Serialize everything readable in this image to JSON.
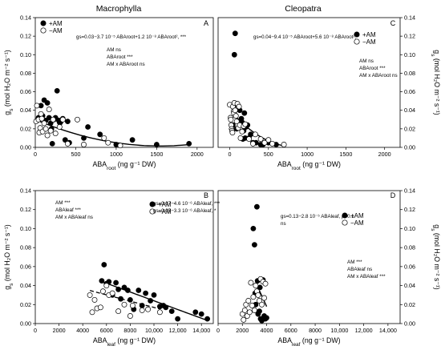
{
  "column_titles": [
    "Macrophylla",
    "Cleopatra"
  ],
  "chart_data": [
    {
      "type": "scatter",
      "panel": "A",
      "xlabel": "ABAroot (ng g⁻¹ DW)",
      "ylabel": "gs (mol H2O m⁻² s⁻¹)",
      "xlim": [
        0,
        2200
      ],
      "ylim": [
        0,
        0.14
      ],
      "xticks": [
        0,
        500,
        1000,
        1500,
        2000
      ],
      "yticks": [
        0.0,
        0.02,
        0.04,
        0.06,
        0.08,
        0.1,
        0.12,
        0.14
      ],
      "legend": [
        "+AM",
        "−AM"
      ],
      "equation": "gs=0.03−3.7 10⁻⁵ ABAroot+1.2 10⁻⁸ ABAroot², ***",
      "stats": [
        "AM  ns",
        "ABAroot ***",
        "AM x ABAroot ns"
      ],
      "series": [
        {
          "name": "+AM",
          "x": [
            40,
            70,
            90,
            110,
            130,
            150,
            170,
            190,
            200,
            210,
            230,
            250,
            270,
            290,
            300,
            310,
            340,
            370,
            400,
            420,
            600,
            650,
            800,
            1000,
            1200,
            1500,
            1900
          ],
          "y": [
            0.032,
            0.045,
            0.034,
            0.051,
            0.029,
            0.048,
            0.032,
            0.026,
            0.02,
            0.004,
            0.03,
            0.032,
            0.061,
            0.029,
            0.027,
            0.027,
            0.031,
            0.008,
            0.028,
            0.005,
            0.01,
            0.022,
            0.014,
            0.003,
            0.008,
            0.003,
            0.004
          ]
        },
        {
          "name": "−AM",
          "x": [
            10,
            20,
            40,
            50,
            60,
            70,
            80,
            90,
            110,
            130,
            150,
            170,
            190,
            220,
            250,
            300,
            340,
            400,
            520,
            600,
            850,
            900,
            1050
          ],
          "y": [
            0.028,
            0.045,
            0.03,
            0.016,
            0.021,
            0.036,
            0.031,
            0.017,
            0.026,
            0.02,
            0.013,
            0.041,
            0.018,
            0.03,
            0.015,
            0.022,
            0.03,
            0.004,
            0.03,
            0.003,
            0.01,
            0.005,
            0.002
          ]
        }
      ],
      "fit": [
        {
          "type": "quadratic",
          "coef": [
            0.03,
            -3.7e-05,
            1.2e-08
          ],
          "x_range": [
            50,
            1900
          ],
          "style": "solid"
        }
      ]
    },
    {
      "type": "scatter",
      "panel": "C",
      "xlabel": "ABAroot (ng g⁻¹ DW)",
      "ylabel": "gs (mol H2O m⁻² s⁻¹)",
      "xlim": [
        -150,
        2200
      ],
      "ylim": [
        0,
        0.14
      ],
      "xticks": [
        0,
        500,
        1000,
        1500,
        2000
      ],
      "yticks": [
        0.0,
        0.02,
        0.04,
        0.06,
        0.08,
        0.1,
        0.12,
        0.14
      ],
      "legend": [
        "+AM",
        "−AM"
      ],
      "equation": "gs=0.04−9.4 10⁻⁵ ABAroot+5.6 10⁻⁸ ABAroot², *",
      "stats": [
        "AM  ns",
        "ABAroot ***",
        "AM x ABAroot ns"
      ],
      "series": [
        {
          "name": "+AM",
          "x": [
            40,
            60,
            70,
            80,
            90,
            100,
            110,
            130,
            150,
            160,
            170,
            180,
            190,
            200,
            210,
            230,
            250,
            270,
            300,
            340,
            400,
            430,
            500,
            600
          ],
          "y": [
            0.024,
            0.1,
            0.123,
            0.034,
            0.02,
            0.046,
            0.041,
            0.04,
            0.031,
            0.027,
            0.009,
            0.018,
            0.037,
            0.01,
            0.022,
            0.024,
            0.01,
            0.014,
            0.005,
            0.005,
            0.003,
            0.003,
            0.005,
            0.003
          ]
        },
        {
          "name": "−AM",
          "x": [
            0,
            10,
            15,
            20,
            25,
            30,
            35,
            40,
            50,
            55,
            60,
            70,
            80,
            90,
            100,
            110,
            120,
            130,
            140,
            160,
            180,
            200,
            250,
            300,
            330,
            400,
            450,
            500,
            550,
            700
          ],
          "y": [
            0.046,
            0.032,
            0.03,
            0.024,
            0.02,
            0.018,
            0.016,
            0.044,
            0.039,
            0.037,
            0.048,
            0.04,
            0.034,
            0.028,
            0.047,
            0.021,
            0.044,
            0.024,
            0.01,
            0.017,
            0.023,
            0.025,
            0.009,
            0.004,
            0.014,
            0.009,
            0.005,
            0.008,
            0.004,
            0.003
          ]
        }
      ],
      "fit": [
        {
          "type": "quadratic",
          "coef": [
            0.04,
            -9.4e-05,
            5.6e-08
          ],
          "x_range": [
            30,
            700
          ],
          "style": "solid"
        }
      ]
    },
    {
      "type": "scatter",
      "panel": "B",
      "xlabel": "ABAleaf (ng g⁻¹ DW)",
      "ylabel": "gs (mol H2O m⁻² s⁻¹)",
      "xlim": [
        0,
        15000
      ],
      "ylim": [
        0,
        0.14
      ],
      "xticks": [
        0,
        2000,
        4000,
        6000,
        8000,
        10000,
        12000,
        14000
      ],
      "yticks": [
        0.0,
        0.02,
        0.04,
        0.06,
        0.08,
        0.1,
        0.12,
        0.14
      ],
      "legend": [
        "+AM",
        "−AM"
      ],
      "equations": [
        "gs=0.07−4.6 10⁻⁶ ABAleaf, ***",
        "gs=0.05−3.3 10⁻⁶ ABAleaf, *"
      ],
      "stats": [
        "AM ***",
        "ABAleaf ***",
        "AM x ABAleaf ns"
      ],
      "series": [
        {
          "name": "+AM",
          "x": [
            5600,
            5800,
            6000,
            6200,
            6500,
            6800,
            7000,
            7200,
            7500,
            7800,
            8000,
            8300,
            8700,
            9000,
            9300,
            9700,
            10000,
            10500,
            10800,
            11000,
            11500,
            12000,
            13500,
            14000,
            14500
          ],
          "y": [
            0.045,
            0.062,
            0.042,
            0.044,
            0.03,
            0.043,
            0.036,
            0.026,
            0.038,
            0.035,
            0.025,
            0.015,
            0.035,
            0.019,
            0.032,
            0.024,
            0.03,
            0.018,
            0.019,
            0.017,
            0.013,
            0.005,
            0.012,
            0.01,
            0.005
          ]
        },
        {
          "name": "−AM",
          "x": [
            4600,
            4800,
            5000,
            5200,
            5500,
            5700,
            6000,
            6200,
            6500,
            7000,
            7500,
            8000,
            8200,
            9000,
            9500,
            10500
          ],
          "y": [
            0.03,
            0.012,
            0.025,
            0.016,
            0.017,
            0.034,
            0.04,
            0.03,
            0.032,
            0.013,
            0.02,
            0.008,
            0.019,
            0.014,
            0.015,
            0.012
          ]
        }
      ],
      "fit": [
        {
          "type": "linear",
          "coef": [
            0.07,
            -4.6e-06
          ],
          "x_range": [
            5500,
            14500
          ],
          "style": "solid"
        },
        {
          "type": "linear",
          "coef": [
            0.05,
            -3.3e-06
          ],
          "x_range": [
            4600,
            10500
          ],
          "style": "dashed"
        }
      ]
    },
    {
      "type": "scatter",
      "panel": "D",
      "xlabel": "ABAleaf (ng g⁻¹ DW)",
      "ylabel": "gs (mol H2O m⁻² s⁻¹)",
      "xlim": [
        0,
        15000
      ],
      "ylim": [
        0,
        0.14
      ],
      "xticks": [
        0,
        2000,
        4000,
        6000,
        8000,
        10000,
        12000,
        14000
      ],
      "yticks": [
        0.0,
        0.02,
        0.04,
        0.06,
        0.08,
        0.1,
        0.12,
        0.14
      ],
      "legend": [
        "+AM",
        "−AM"
      ],
      "equation": "gs=0.13−2.8 10⁻⁵ ABAleaf, p<0.1",
      "equation_ns": "ns",
      "stats": [
        "AM ***",
        "ABAleaf ns",
        "AM x ABAleaf ***"
      ],
      "series": [
        {
          "name": "+AM",
          "x": [
            2900,
            3000,
            3050,
            3100,
            3200,
            3250,
            3300,
            3400,
            3450,
            3500,
            3600,
            3700,
            3800,
            3900,
            4000
          ],
          "y": [
            0.1,
            0.083,
            0.032,
            0.02,
            0.123,
            0.045,
            0.01,
            0.013,
            0.038,
            0.005,
            0.003,
            0.046,
            0.008,
            0.005,
            0.006
          ]
        },
        {
          "name": "−AM",
          "x": [
            2000,
            2100,
            2200,
            2300,
            2400,
            2500,
            2600,
            2700,
            2800,
            2900,
            3000,
            3100,
            3200,
            3300,
            3400,
            3500,
            3600,
            3700,
            3800,
            3900
          ],
          "y": [
            0.01,
            0.004,
            0.014,
            0.02,
            0.008,
            0.024,
            0.012,
            0.043,
            0.019,
            0.028,
            0.014,
            0.04,
            0.034,
            0.03,
            0.024,
            0.047,
            0.02,
            0.044,
            0.027,
            0.042
          ]
        }
      ],
      "fit": [
        {
          "type": "linear",
          "coef": [
            0.13,
            -2.8e-05
          ],
          "x_range": [
            3400,
            4000
          ],
          "style": "solid"
        }
      ]
    }
  ]
}
